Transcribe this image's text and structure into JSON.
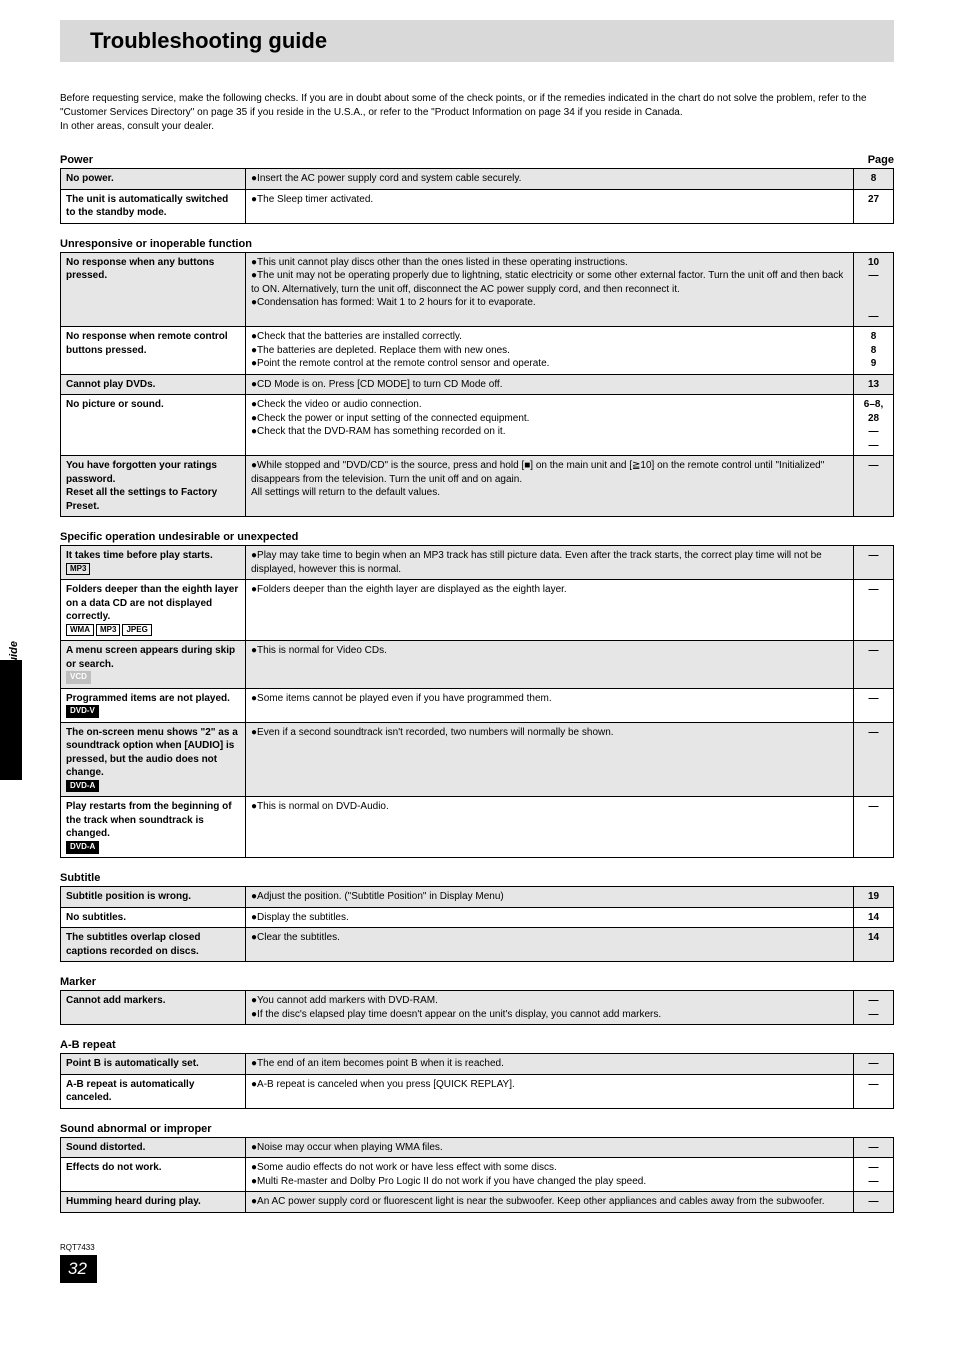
{
  "title": "Troubleshooting guide",
  "intro": "Before requesting service, make the following checks. If you are in doubt about some of the check points, or if the remedies indicated in the chart do not solve the problem, refer to the \"Customer Services Directory\" on page 35 if you reside in the U.S.A., or refer to the \"Product Information on page 34 if you reside in Canada.\nIn other areas, consult your dealer.",
  "page_label": "Page",
  "side_label": "Troubleshooting guide",
  "footer_model": "RQT7433",
  "footer_page": "32",
  "sections": [
    {
      "heading": "Power",
      "show_page_label": true,
      "rows": [
        {
          "shaded": true,
          "symptom": "No power.",
          "badges": [],
          "remedy": [
            "●Insert the AC power supply cord and system cable securely."
          ],
          "page": "8"
        },
        {
          "shaded": false,
          "symptom": "The unit is automatically switched to the standby mode.",
          "badges": [],
          "remedy": [
            "●The Sleep timer activated."
          ],
          "page": "27"
        }
      ]
    },
    {
      "heading": "Unresponsive or inoperable function",
      "rows": [
        {
          "shaded": true,
          "symptom": "No response when any buttons pressed.",
          "badges": [],
          "remedy": [
            "●This unit cannot play discs other than the ones listed in these operating instructions.",
            "●The unit may not be operating properly due to lightning, static electricity or some other external factor. Turn the unit off and then back to ON. Alternatively, turn the unit off, disconnect the AC power supply cord, and then reconnect it.",
            "●Condensation has formed: Wait 1 to 2 hours for it to evaporate."
          ],
          "page": "10\n—\n\n\n—"
        },
        {
          "shaded": false,
          "symptom": "No response when remote control buttons pressed.",
          "badges": [],
          "remedy": [
            "●Check that the batteries are installed correctly.",
            "●The batteries are depleted. Replace them with new ones.",
            "●Point the remote control at the remote control sensor and operate."
          ],
          "page": "8\n8\n9"
        },
        {
          "shaded": true,
          "symptom": "Cannot play DVDs.",
          "badges": [],
          "remedy": [
            "●CD Mode is on. Press [CD MODE] to turn CD Mode off."
          ],
          "page": "13"
        },
        {
          "shaded": false,
          "symptom": "No picture or sound.",
          "badges": [],
          "remedy": [
            "●Check the video or audio connection.",
            "●Check the power or input setting of the connected equipment.",
            "●Check that the DVD-RAM has something recorded on it."
          ],
          "page": "6–8, 28\n—\n—"
        },
        {
          "shaded": true,
          "symptom": "You have forgotten your ratings password.\nReset all the settings to Factory Preset.",
          "badges": [],
          "remedy": [
            "●While stopped and \"DVD/CD\" is the source, press and hold [■] on the main unit and [≧10] on the remote control until \"Initialized\" disappears from the television. Turn the unit off and on again.\nAll settings will return to the default values."
          ],
          "page": "—"
        }
      ]
    },
    {
      "heading": "Specific operation undesirable or unexpected",
      "rows": [
        {
          "shaded": true,
          "symptom": "It takes time before play starts.",
          "badges": [
            {
              "text": "MP3",
              "style": ""
            }
          ],
          "remedy": [
            "●Play may take time to begin when an MP3 track has still picture data. Even after the track starts, the correct play time will not be displayed, however this is normal."
          ],
          "page": "—"
        },
        {
          "shaded": false,
          "symptom": "Folders deeper than the eighth layer on a data CD are not displayed correctly.",
          "badges": [
            {
              "text": "WMA",
              "style": ""
            },
            {
              "text": "MP3",
              "style": ""
            },
            {
              "text": "JPEG",
              "style": ""
            }
          ],
          "remedy": [
            "●Folders deeper than the eighth layer are displayed as the eighth layer."
          ],
          "page": "—"
        },
        {
          "shaded": true,
          "symptom": "A menu screen appears during skip or search.",
          "badges": [
            {
              "text": "VCD",
              "style": "gray"
            }
          ],
          "remedy": [
            "●This is normal for Video CDs."
          ],
          "page": "—"
        },
        {
          "shaded": false,
          "symptom": "Programmed items are not played.",
          "badges": [
            {
              "text": "DVD-V",
              "style": "inv"
            }
          ],
          "remedy": [
            "●Some items cannot be played even if you have programmed them."
          ],
          "page": "—"
        },
        {
          "shaded": true,
          "symptom": "The on-screen menu shows \"2\" as a soundtrack option when [AUDIO] is pressed, but the audio does not change.",
          "badges": [
            {
              "text": "DVD-A",
              "style": "inv"
            }
          ],
          "remedy": [
            "●Even if a second soundtrack isn't recorded, two numbers will normally be shown."
          ],
          "page": "—"
        },
        {
          "shaded": false,
          "symptom": "Play restarts from the beginning of the track when soundtrack is changed.",
          "badges": [
            {
              "text": "DVD-A",
              "style": "inv"
            }
          ],
          "remedy": [
            "●This is normal on DVD-Audio."
          ],
          "page": "—"
        }
      ]
    },
    {
      "heading": "Subtitle",
      "rows": [
        {
          "shaded": true,
          "symptom": "Subtitle position is wrong.",
          "badges": [],
          "remedy": [
            "●Adjust the position. (\"Subtitle Position\" in Display Menu)"
          ],
          "page": "19"
        },
        {
          "shaded": false,
          "symptom": "No subtitles.",
          "badges": [],
          "remedy": [
            "●Display the subtitles."
          ],
          "page": "14"
        },
        {
          "shaded": true,
          "symptom": "The subtitles overlap closed captions recorded on discs.",
          "badges": [],
          "remedy": [
            "●Clear the subtitles."
          ],
          "page": "14"
        }
      ]
    },
    {
      "heading": "Marker",
      "rows": [
        {
          "shaded": true,
          "symptom": "Cannot add markers.",
          "badges": [],
          "remedy": [
            "●You cannot add markers with DVD-RAM.",
            "●If the disc's elapsed play time doesn't appear on the unit's display, you cannot add markers."
          ],
          "page": "—\n—"
        }
      ]
    },
    {
      "heading": "A-B repeat",
      "rows": [
        {
          "shaded": true,
          "symptom": "Point B is automatically set.",
          "badges": [],
          "remedy": [
            "●The end of an item becomes point B when it is reached."
          ],
          "page": "—"
        },
        {
          "shaded": false,
          "symptom": "A-B repeat is automatically canceled.",
          "badges": [],
          "remedy": [
            "●A-B repeat is canceled when you press [QUICK REPLAY]."
          ],
          "page": "—"
        }
      ]
    },
    {
      "heading": "Sound abnormal or improper",
      "rows": [
        {
          "shaded": true,
          "symptom": "Sound distorted.",
          "badges": [],
          "remedy": [
            "●Noise may occur when playing WMA files."
          ],
          "page": "—"
        },
        {
          "shaded": false,
          "symptom": "Effects do not work.",
          "badges": [],
          "remedy": [
            "●Some audio effects do not work or have less effect with some discs.",
            "●Multi Re-master and Dolby Pro Logic II do not work if you have changed the play speed."
          ],
          "page": "—\n—"
        },
        {
          "shaded": true,
          "symptom": "Humming heard during play.",
          "badges": [],
          "remedy": [
            "●An AC power supply cord or fluorescent light is near the subwoofer. Keep other appliances and cables away from the subwoofer."
          ],
          "page": "—"
        }
      ]
    }
  ]
}
